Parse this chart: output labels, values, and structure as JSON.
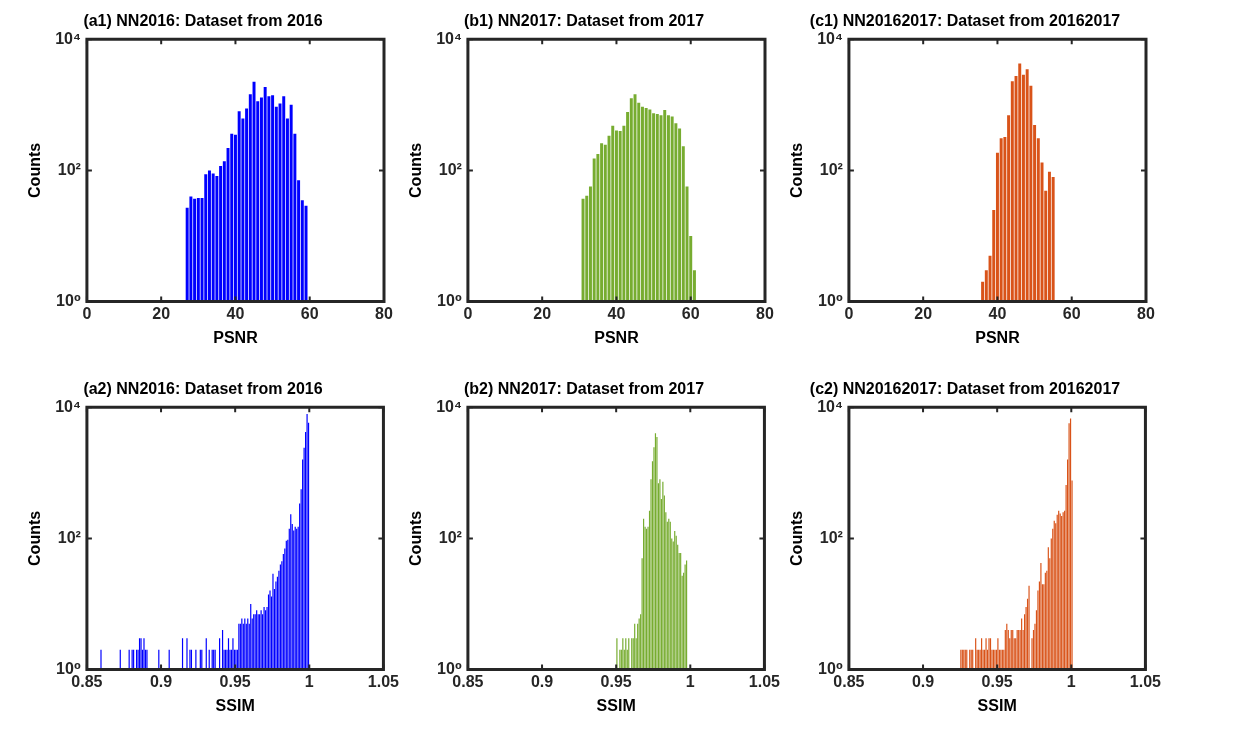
{
  "chart_data": [
    {
      "type": "histogram",
      "title": "(a1) NN2016: Dataset from 2016",
      "xlabel": "PSNR",
      "ylabel": "Counts",
      "color": "#0000ff",
      "log": "y",
      "xlim": [
        0,
        80
      ],
      "xticks": [
        0,
        20,
        40,
        60,
        80
      ],
      "ylim": [
        1,
        10000
      ],
      "yticks": [
        {
          "value": 1,
          "label": "10⁰"
        },
        {
          "value": 100,
          "label": "10²"
        },
        {
          "value": 10000,
          "label": "10⁴"
        }
      ],
      "bins": [
        26.5,
        27.5,
        28.5,
        29.5,
        30.5,
        31.5,
        32.5,
        33.5,
        34.5,
        35.5,
        36.5,
        37.5,
        38.5,
        39.5,
        40.5,
        41.5,
        42.5,
        43.5,
        44.5,
        45.5,
        46.5,
        47.5,
        48.5,
        49.5,
        50.5,
        51.5,
        52.5,
        53.5,
        54.5,
        55.5,
        56.5,
        57.5,
        58.5,
        59.5
      ],
      "values": [
        27,
        40,
        37,
        38,
        38,
        87,
        100,
        90,
        82,
        117,
        138,
        219,
        363,
        350,
        800,
        616,
        876,
        1450,
        2240,
        1130,
        1290,
        1860,
        1350,
        1400,
        930,
        1050,
        1350,
        620,
        1000,
        363,
        71,
        35,
        29
      ]
    },
    {
      "type": "histogram",
      "title": "(b1) NN2017: Dataset from 2017",
      "xlabel": "PSNR",
      "ylabel": "Counts",
      "color": "#77ac30",
      "log": "y",
      "xlim": [
        0,
        80
      ],
      "xticks": [
        0,
        20,
        40,
        60,
        80
      ],
      "ylim": [
        1,
        10000
      ],
      "yticks": [
        {
          "value": 1,
          "label": "10⁰"
        },
        {
          "value": 100,
          "label": "10²"
        },
        {
          "value": 10000,
          "label": "10⁴"
        }
      ],
      "bins": [
        30.5,
        31.5,
        32.5,
        33.5,
        34.5,
        35.5,
        36.5,
        37.5,
        38.5,
        39.5,
        40.5,
        41.5,
        42.5,
        43.5,
        44.5,
        45.5,
        46.5,
        47.5,
        48.5,
        49.5,
        50.5,
        51.5,
        52.5,
        53.5,
        54.5,
        55.5,
        56.5,
        57.5,
        58.5,
        59.5,
        60.5,
        61.5
      ],
      "values": [
        37,
        41,
        57,
        152,
        178,
        259,
        246,
        338,
        479,
        407,
        398,
        479,
        776,
        1260,
        1450,
        1070,
        933,
        891,
        851,
        741,
        724,
        692,
        832,
        692,
        661,
        525,
        437,
        234,
        57,
        10,
        3
      ]
    },
    {
      "type": "histogram",
      "title": "(c1) NN20162017: Dataset from 20162017",
      "xlabel": "PSNR",
      "ylabel": "Counts",
      "color": "#d95319",
      "log": "y",
      "xlim": [
        0,
        80
      ],
      "xticks": [
        0,
        20,
        40,
        60,
        80
      ],
      "ylim": [
        1,
        10000
      ],
      "yticks": [
        {
          "value": 1,
          "label": "10⁰"
        },
        {
          "value": 100,
          "label": "10²"
        },
        {
          "value": 10000,
          "label": "10⁴"
        }
      ],
      "bins": [
        35.5,
        36.5,
        37.5,
        38.5,
        39.5,
        40.5,
        41.5,
        42.5,
        43.5,
        44.5,
        45.5,
        46.5,
        47.5,
        48.5,
        49.5,
        50.5,
        51.5,
        52.5,
        53.5,
        54.5,
        55.5
      ],
      "values": [
        2,
        3,
        5,
        25,
        186,
        309,
        324,
        692,
        2290,
        2750,
        4270,
        2880,
        3470,
        1950,
        490,
        309,
        132,
        49,
        95,
        79
      ]
    },
    {
      "type": "histogram",
      "title": "(a2) NN2016: Dataset from 2016",
      "xlabel": "SSIM",
      "ylabel": "Counts",
      "color": "#0000ff",
      "log": "y",
      "xlim": [
        0.85,
        1.05
      ],
      "xticks": [
        0.85,
        0.9,
        0.95,
        1,
        1.05
      ],
      "ylim": [
        1,
        10000
      ],
      "yticks": [
        {
          "value": 1,
          "label": "10⁰"
        },
        {
          "value": 100,
          "label": "10²"
        },
        {
          "value": 10000,
          "label": "10⁴"
        }
      ],
      "bins": [
        0.859,
        0.86,
        0.861,
        0.862,
        0.863,
        0.864,
        0.865,
        0.866,
        0.867,
        0.868,
        0.869,
        0.87,
        0.871,
        0.872,
        0.873,
        0.874,
        0.875,
        0.876,
        0.877,
        0.878,
        0.879,
        0.88,
        0.881,
        0.882,
        0.883,
        0.884,
        0.885,
        0.886,
        0.887,
        0.888,
        0.889,
        0.89,
        0.891,
        0.892,
        0.893,
        0.894,
        0.895,
        0.896,
        0.897,
        0.898,
        0.899,
        0.9,
        0.901,
        0.902,
        0.903,
        0.904,
        0.905,
        0.906,
        0.907,
        0.908,
        0.909,
        0.91,
        0.911,
        0.912,
        0.913,
        0.914,
        0.915,
        0.916,
        0.917,
        0.918,
        0.919,
        0.92,
        0.921,
        0.922,
        0.923,
        0.924,
        0.925,
        0.926,
        0.927,
        0.928,
        0.929,
        0.93,
        0.931,
        0.932,
        0.933,
        0.934,
        0.935,
        0.936,
        0.937,
        0.938,
        0.939,
        0.94,
        0.941,
        0.942,
        0.943,
        0.944,
        0.945,
        0.946,
        0.947,
        0.948,
        0.949,
        0.95,
        0.951,
        0.952,
        0.953,
        0.954,
        0.955,
        0.956,
        0.957,
        0.958,
        0.959,
        0.96,
        0.961,
        0.962,
        0.963,
        0.964,
        0.965,
        0.966,
        0.967,
        0.968,
        0.969,
        0.97,
        0.971,
        0.972,
        0.973,
        0.974,
        0.975,
        0.976,
        0.977,
        0.978,
        0.979,
        0.98,
        0.981,
        0.982,
        0.983,
        0.984,
        0.985,
        0.986,
        0.987,
        0.988,
        0.989,
        0.99,
        0.991,
        0.992,
        0.993,
        0.994,
        0.995,
        0.996,
        0.997,
        0.998,
        0.999,
        1
      ],
      "values": [
        2,
        null,
        null,
        null,
        null,
        null,
        null,
        null,
        null,
        null,
        null,
        null,
        null,
        2,
        null,
        null,
        null,
        null,
        null,
        2,
        null,
        2,
        2,
        null,
        2,
        2,
        3,
        3,
        2,
        3,
        2,
        2,
        null,
        null,
        null,
        null,
        null,
        null,
        null,
        2,
        null,
        null,
        null,
        null,
        null,
        null,
        2,
        null,
        null,
        null,
        null,
        null,
        null,
        null,
        null,
        3,
        null,
        null,
        3,
        null,
        2,
        2,
        null,
        null,
        2,
        null,
        null,
        2,
        2,
        null,
        null,
        3,
        null,
        2,
        null,
        2,
        2,
        2,
        null,
        null,
        3,
        null,
        4,
        2,
        2,
        2,
        3,
        2,
        2,
        3,
        2,
        2,
        2,
        5,
        5,
        6,
        5,
        6,
        5,
        6,
        5,
        10,
        6,
        7,
        7,
        8,
        7,
        7,
        8,
        7,
        9,
        8,
        9,
        14,
        16,
        13,
        29,
        17,
        22,
        26,
        32,
        40,
        45,
        58,
        70,
        92,
        95,
        140,
        234,
        166,
        132,
        150,
        140,
        150,
        340,
        560,
        1600,
        2400,
        4200,
        7900,
        5800
      ]
    },
    {
      "type": "histogram",
      "title": "(b2) NN2017: Dataset from 2017",
      "xlabel": "SSIM",
      "ylabel": "Counts",
      "color": "#77ac30",
      "log": "y",
      "xlim": [
        0.85,
        1.05
      ],
      "xticks": [
        0.85,
        0.9,
        0.95,
        1,
        1.05
      ],
      "ylim": [
        1,
        10000
      ],
      "yticks": [
        {
          "value": 1,
          "label": "10⁰"
        },
        {
          "value": 100,
          "label": "10²"
        },
        {
          "value": 10000,
          "label": "10⁴"
        }
      ],
      "bins": [
        0.95,
        0.951,
        0.952,
        0.953,
        0.954,
        0.955,
        0.956,
        0.957,
        0.958,
        0.959,
        0.96,
        0.961,
        0.962,
        0.963,
        0.964,
        0.965,
        0.966,
        0.967,
        0.968,
        0.969,
        0.97,
        0.971,
        0.972,
        0.973,
        0.974,
        0.975,
        0.976,
        0.977,
        0.978,
        0.979,
        0.98,
        0.981,
        0.982,
        0.983,
        0.984,
        0.985,
        0.986,
        0.987,
        0.988,
        0.989,
        0.99,
        0.991,
        0.992,
        0.993,
        0.994,
        0.995,
        0.996,
        0.997,
        0.998
      ],
      "values": [
        3,
        null,
        2,
        2,
        3,
        2,
        3,
        2,
        3,
        null,
        3,
        3,
        5,
        3,
        5,
        6,
        7,
        50,
        200,
        150,
        140,
        150,
        265,
        800,
        1500,
        2450,
        4000,
        3500,
        690,
        800,
        400,
        730,
        450,
        250,
        180,
        200,
        180,
        100,
        90,
        130,
        110,
        80,
        60,
        60,
        27,
        30,
        40,
        46
      ]
    },
    {
      "type": "histogram",
      "title": "(c2) NN20162017: Dataset from 20162017",
      "xlabel": "SSIM",
      "ylabel": "Counts",
      "color": "#d95319",
      "log": "y",
      "xlim": [
        0.85,
        1.05
      ],
      "xticks": [
        0.85,
        0.9,
        0.95,
        1,
        1.05
      ],
      "ylim": [
        1,
        10000
      ],
      "yticks": [
        {
          "value": 1,
          "label": "10⁰"
        },
        {
          "value": 100,
          "label": "10²"
        },
        {
          "value": 10000,
          "label": "10⁴"
        }
      ],
      "bins": [
        0.925,
        0.926,
        0.927,
        0.928,
        0.929,
        0.93,
        0.931,
        0.932,
        0.933,
        0.934,
        0.935,
        0.936,
        0.937,
        0.938,
        0.939,
        0.94,
        0.941,
        0.942,
        0.943,
        0.944,
        0.945,
        0.946,
        0.947,
        0.948,
        0.949,
        0.95,
        0.951,
        0.952,
        0.953,
        0.954,
        0.955,
        0.956,
        0.957,
        0.958,
        0.959,
        0.96,
        0.961,
        0.962,
        0.963,
        0.964,
        0.965,
        0.966,
        0.967,
        0.968,
        0.969,
        0.97,
        0.971,
        0.972,
        0.973,
        0.974,
        0.975,
        0.976,
        0.977,
        0.978,
        0.979,
        0.98,
        0.981,
        0.982,
        0.983,
        0.984,
        0.985,
        0.986,
        0.987,
        0.988,
        0.989,
        0.99,
        0.991,
        0.992,
        0.993,
        0.994,
        0.995,
        0.996,
        0.997,
        0.998,
        0.999,
        1,
        1.001
      ],
      "values": [
        2,
        2,
        2,
        2,
        2,
        null,
        2,
        2,
        2,
        null,
        3,
        2,
        2,
        2,
        3,
        2,
        2,
        3,
        2,
        3,
        3,
        2,
        2,
        2,
        2,
        3,
        2,
        2,
        2,
        2,
        4,
        5,
        4,
        3,
        4,
        4,
        3,
        3,
        4,
        4,
        4,
        6,
        4,
        7,
        9,
        12,
        19,
        null,
        3,
        4,
        5,
        8,
        16,
        22,
        42,
        20,
        20,
        30,
        32,
        73,
        50,
        100,
        140,
        185,
        170,
        230,
        265,
        240,
        220,
        250,
        265,
        650,
        1600,
        5700,
        6700,
        760
      ]
    }
  ]
}
